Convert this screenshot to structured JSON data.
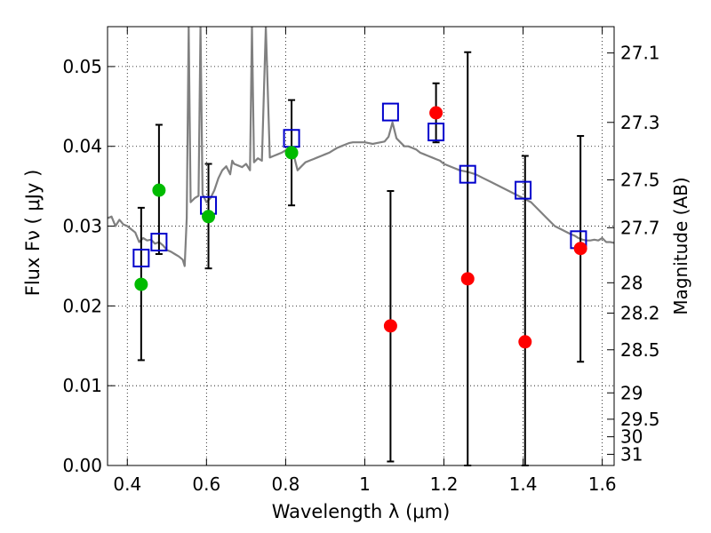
{
  "chart_data": {
    "type": "scatter",
    "xlabel": "Wavelength  λ (μm)",
    "ylabel": "Flux  Fν  ( μJy )",
    "ylabel_right": "Magnitude (AB)",
    "xlim": [
      0.35,
      1.63
    ],
    "ylim": [
      0.0,
      0.055
    ],
    "x_ticks": [
      0.4,
      0.6,
      0.8,
      1.0,
      1.2,
      1.4,
      1.6
    ],
    "x_tick_labels": [
      "0.4",
      "0.6",
      "0.8",
      "1",
      "1.2",
      "1.4",
      "1.6"
    ],
    "y_ticks": [
      0.0,
      0.01,
      0.02,
      0.03,
      0.04,
      0.05
    ],
    "y_tick_labels": [
      "0.00",
      "0.01",
      "0.02",
      "0.03",
      "0.04",
      "0.05"
    ],
    "right_ticks": [
      {
        "flux": 0.0517,
        "label": "27.1"
      },
      {
        "flux": 0.043,
        "label": "27.3"
      },
      {
        "flux": 0.0358,
        "label": "27.5"
      },
      {
        "flux": 0.0298,
        "label": "27.7"
      },
      {
        "flux": 0.0229,
        "label": "28"
      },
      {
        "flux": 0.0191,
        "label": "28.2"
      },
      {
        "flux": 0.0145,
        "label": "28.5"
      },
      {
        "flux": 0.0091,
        "label": "29"
      },
      {
        "flux": 0.0058,
        "label": "29.5"
      },
      {
        "flux": 0.0036,
        "label": "30"
      },
      {
        "flux": 0.0014,
        "label": "31"
      }
    ],
    "grid": true,
    "series": [
      {
        "kind": "model_spectrum",
        "color": "#808080",
        "points": [
          [
            0.35,
            0.031
          ],
          [
            0.36,
            0.0312
          ],
          [
            0.37,
            0.03
          ],
          [
            0.38,
            0.0308
          ],
          [
            0.39,
            0.0302
          ],
          [
            0.4,
            0.03
          ],
          [
            0.41,
            0.0296
          ],
          [
            0.42,
            0.0292
          ],
          [
            0.43,
            0.028
          ],
          [
            0.44,
            0.0285
          ],
          [
            0.45,
            0.0282
          ],
          [
            0.46,
            0.0283
          ],
          [
            0.47,
            0.0278
          ],
          [
            0.48,
            0.028
          ],
          [
            0.49,
            0.0276
          ],
          [
            0.5,
            0.027
          ],
          [
            0.51,
            0.0268
          ],
          [
            0.52,
            0.0265
          ],
          [
            0.53,
            0.0262
          ],
          [
            0.54,
            0.0258
          ],
          [
            0.545,
            0.025
          ],
          [
            0.55,
            0.031
          ],
          [
            0.555,
            0.055
          ],
          [
            0.56,
            0.033
          ],
          [
            0.57,
            0.0335
          ],
          [
            0.58,
            0.0338
          ],
          [
            0.585,
            0.055
          ],
          [
            0.59,
            0.034
          ],
          [
            0.6,
            0.033
          ],
          [
            0.61,
            0.0335
          ],
          [
            0.62,
            0.0345
          ],
          [
            0.63,
            0.036
          ],
          [
            0.64,
            0.037
          ],
          [
            0.65,
            0.0375
          ],
          [
            0.66,
            0.0365
          ],
          [
            0.665,
            0.0382
          ],
          [
            0.67,
            0.0378
          ],
          [
            0.68,
            0.0376
          ],
          [
            0.69,
            0.0374
          ],
          [
            0.7,
            0.0378
          ],
          [
            0.71,
            0.037
          ],
          [
            0.715,
            0.055
          ],
          [
            0.72,
            0.038
          ],
          [
            0.73,
            0.0385
          ],
          [
            0.74,
            0.0382
          ],
          [
            0.75,
            0.055
          ],
          [
            0.76,
            0.0386
          ],
          [
            0.77,
            0.0388
          ],
          [
            0.78,
            0.039
          ],
          [
            0.79,
            0.0392
          ],
          [
            0.8,
            0.0395
          ],
          [
            0.81,
            0.0393
          ],
          [
            0.82,
            0.039
          ],
          [
            0.83,
            0.037
          ],
          [
            0.84,
            0.0375
          ],
          [
            0.85,
            0.038
          ],
          [
            0.86,
            0.0382
          ],
          [
            0.87,
            0.0384
          ],
          [
            0.88,
            0.0386
          ],
          [
            0.89,
            0.0388
          ],
          [
            0.9,
            0.039
          ],
          [
            0.91,
            0.0392
          ],
          [
            0.92,
            0.0395
          ],
          [
            0.93,
            0.0398
          ],
          [
            0.94,
            0.04
          ],
          [
            0.95,
            0.0402
          ],
          [
            0.96,
            0.0404
          ],
          [
            0.97,
            0.0405
          ],
          [
            0.98,
            0.0405
          ],
          [
            0.99,
            0.0405
          ],
          [
            1.0,
            0.0405
          ],
          [
            1.01,
            0.0404
          ],
          [
            1.02,
            0.0403
          ],
          [
            1.03,
            0.0404
          ],
          [
            1.04,
            0.0405
          ],
          [
            1.05,
            0.0406
          ],
          [
            1.06,
            0.0412
          ],
          [
            1.07,
            0.043
          ],
          [
            1.08,
            0.041
          ],
          [
            1.09,
            0.0405
          ],
          [
            1.1,
            0.04
          ],
          [
            1.11,
            0.04
          ],
          [
            1.12,
            0.0398
          ],
          [
            1.13,
            0.0396
          ],
          [
            1.14,
            0.0392
          ],
          [
            1.15,
            0.039
          ],
          [
            1.16,
            0.0388
          ],
          [
            1.17,
            0.0386
          ],
          [
            1.18,
            0.0384
          ],
          [
            1.19,
            0.0382
          ],
          [
            1.2,
            0.0378
          ],
          [
            1.22,
            0.0374
          ],
          [
            1.24,
            0.037
          ],
          [
            1.26,
            0.0368
          ],
          [
            1.28,
            0.0365
          ],
          [
            1.3,
            0.036
          ],
          [
            1.32,
            0.0355
          ],
          [
            1.34,
            0.035
          ],
          [
            1.36,
            0.0345
          ],
          [
            1.38,
            0.034
          ],
          [
            1.4,
            0.0335
          ],
          [
            1.42,
            0.033
          ],
          [
            1.44,
            0.032
          ],
          [
            1.46,
            0.031
          ],
          [
            1.48,
            0.03
          ],
          [
            1.5,
            0.0295
          ],
          [
            1.52,
            0.029
          ],
          [
            1.53,
            0.0288
          ],
          [
            1.54,
            0.0285
          ],
          [
            1.55,
            0.0283
          ],
          [
            1.56,
            0.0282
          ],
          [
            1.57,
            0.0282
          ],
          [
            1.58,
            0.0283
          ],
          [
            1.59,
            0.0282
          ],
          [
            1.6,
            0.0285
          ],
          [
            1.61,
            0.028
          ],
          [
            1.62,
            0.028
          ],
          [
            1.63,
            0.0279
          ]
        ]
      },
      {
        "kind": "model_photometry",
        "marker": "open-square",
        "color": "#0000cc",
        "points": [
          [
            0.435,
            0.026
          ],
          [
            0.48,
            0.028
          ],
          [
            0.605,
            0.0326
          ],
          [
            0.815,
            0.041
          ],
          [
            1.065,
            0.0443
          ],
          [
            1.18,
            0.0418
          ],
          [
            1.26,
            0.0365
          ],
          [
            1.4,
            0.0345
          ],
          [
            1.54,
            0.0283
          ]
        ]
      },
      {
        "kind": "observed_detection",
        "marker": "filled-circle",
        "color": "#00bb00",
        "points": [
          {
            "x": 0.435,
            "y": 0.0227,
            "err_low": 0.0132,
            "err_high": 0.0323
          },
          {
            "x": 0.48,
            "y": 0.0345,
            "err_low": 0.0265,
            "err_high": 0.0427
          },
          {
            "x": 0.605,
            "y": 0.0312,
            "err_low": 0.0247,
            "err_high": 0.0378
          },
          {
            "x": 0.815,
            "y": 0.0392,
            "err_low": 0.0326,
            "err_high": 0.0458
          }
        ]
      },
      {
        "kind": "observed_other",
        "marker": "filled-circle",
        "color": "#ff0000",
        "points": [
          {
            "x": 1.065,
            "y": 0.0175,
            "err_low": 0.0005,
            "err_high": 0.0344
          },
          {
            "x": 1.18,
            "y": 0.0442,
            "err_low": 0.0405,
            "err_high": 0.0479
          },
          {
            "x": 1.26,
            "y": 0.0234,
            "err_low": 0.0,
            "err_high": 0.0518
          },
          {
            "x": 1.405,
            "y": 0.0155,
            "err_low": 0.0,
            "err_high": 0.0388
          },
          {
            "x": 1.545,
            "y": 0.0272,
            "err_low": 0.013,
            "err_high": 0.0413
          }
        ]
      }
    ]
  }
}
